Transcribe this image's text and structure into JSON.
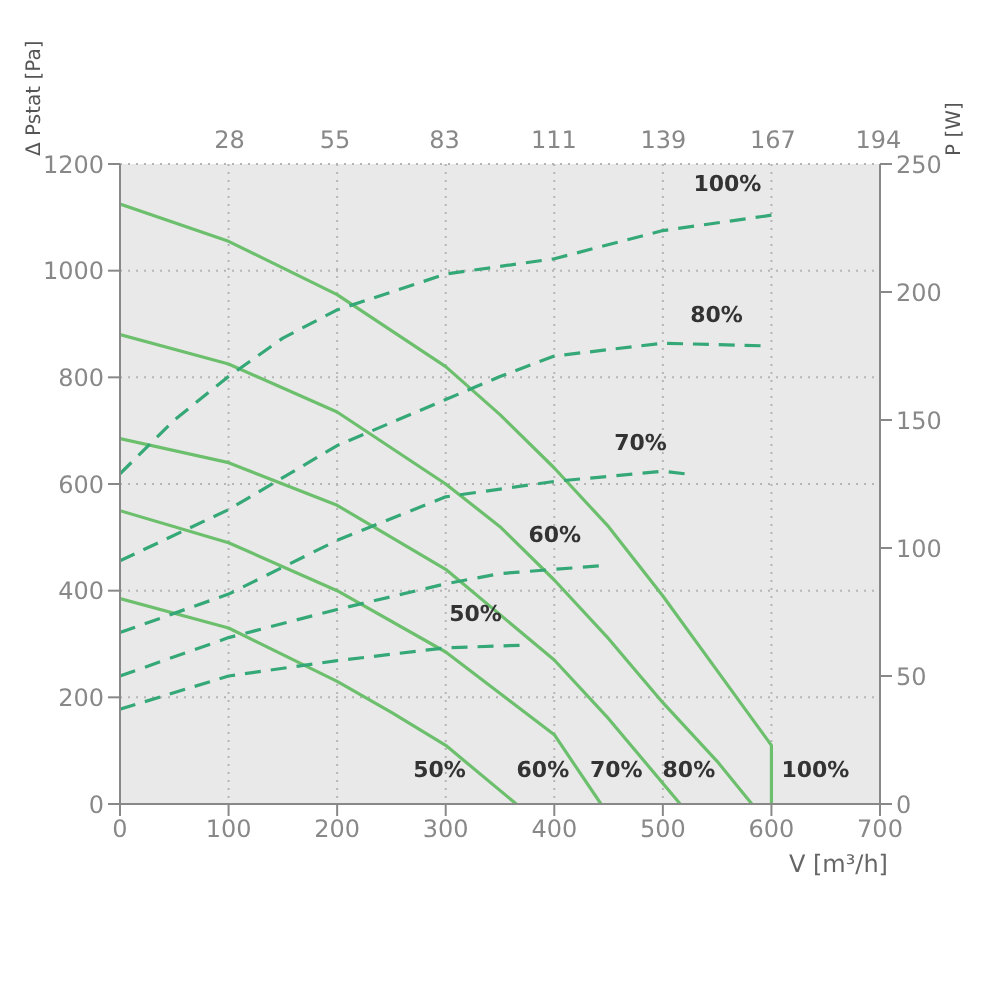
{
  "chart_data": {
    "type": "line",
    "xlabel": "V [m³/h]",
    "ylabel": "Δ Pstat [Pa]",
    "y2label": "P [W]",
    "xlim": [
      0,
      700
    ],
    "xticks": [
      0,
      100,
      200,
      300,
      400,
      500,
      600,
      700
    ],
    "x2lim": [
      0,
      194.4
    ],
    "x2ticks": [
      28,
      55,
      83,
      111,
      139,
      167,
      194
    ],
    "ylim": [
      0,
      1200
    ],
    "yticks": [
      0,
      200,
      400,
      600,
      800,
      1000,
      1200
    ],
    "y2lim": [
      0,
      250
    ],
    "y2ticks": [
      0,
      50,
      100,
      150,
      200,
      250
    ],
    "grid": true,
    "marker": "none",
    "series": [
      {
        "name": "50%",
        "color": "#6cbf6c",
        "line_style": "solid",
        "x": [
          0,
          100,
          200,
          250,
          300,
          365
        ],
        "values": [
          385,
          330,
          230,
          172,
          110,
          0
        ]
      },
      {
        "name": "60%",
        "color": "#6cbf6c",
        "line_style": "solid",
        "x": [
          0,
          100,
          200,
          300,
          400,
          443
        ],
        "values": [
          550,
          490,
          400,
          285,
          130,
          0
        ]
      },
      {
        "name": "70%",
        "color": "#6cbf6c",
        "line_style": "solid",
        "x": [
          0,
          100,
          200,
          300,
          400,
          450,
          516
        ],
        "values": [
          685,
          640,
          560,
          440,
          270,
          160,
          0
        ]
      },
      {
        "name": "80%",
        "color": "#6cbf6c",
        "line_style": "solid",
        "x": [
          0,
          100,
          200,
          300,
          350,
          400,
          450,
          500,
          550,
          582
        ],
        "values": [
          880,
          825,
          735,
          600,
          520,
          420,
          310,
          190,
          80,
          0
        ]
      },
      {
        "name": "100%",
        "color": "#6cbf6c",
        "line_style": "solid",
        "x": [
          0,
          100,
          200,
          300,
          350,
          400,
          450,
          500,
          550,
          600,
          600
        ],
        "values": [
          1125,
          1055,
          955,
          820,
          730,
          630,
          520,
          390,
          250,
          110,
          0
        ]
      },
      {
        "name": "50%",
        "color": "#35a877",
        "line_style": "dashed",
        "axis": "y2",
        "x": [
          0,
          100,
          200,
          300,
          368
        ],
        "values": [
          37,
          50,
          56,
          61,
          62
        ]
      },
      {
        "name": "60%",
        "color": "#35a877",
        "line_style": "dashed",
        "axis": "y2",
        "x": [
          0,
          100,
          200,
          300,
          350,
          441
        ],
        "values": [
          50,
          65,
          76,
          86,
          90,
          93
        ]
      },
      {
        "name": "70%",
        "color": "#35a877",
        "line_style": "dashed",
        "axis": "y2",
        "x": [
          0,
          100,
          200,
          300,
          400,
          500,
          520
        ],
        "values": [
          67,
          82,
          103,
          120,
          126,
          130,
          129
        ]
      },
      {
        "name": "80%",
        "color": "#35a877",
        "line_style": "dashed",
        "axis": "y2",
        "x": [
          0,
          100,
          200,
          300,
          350,
          400,
          500,
          590
        ],
        "values": [
          95,
          115,
          140,
          158,
          167,
          175,
          180,
          179
        ]
      },
      {
        "name": "100%",
        "color": "#35a877",
        "line_style": "dashed",
        "axis": "y2",
        "x": [
          0,
          50,
          100,
          150,
          200,
          300,
          400,
          500,
          600
        ],
        "values": [
          129,
          150,
          167,
          182,
          193,
          207,
          213,
          224,
          230
        ]
      }
    ]
  }
}
